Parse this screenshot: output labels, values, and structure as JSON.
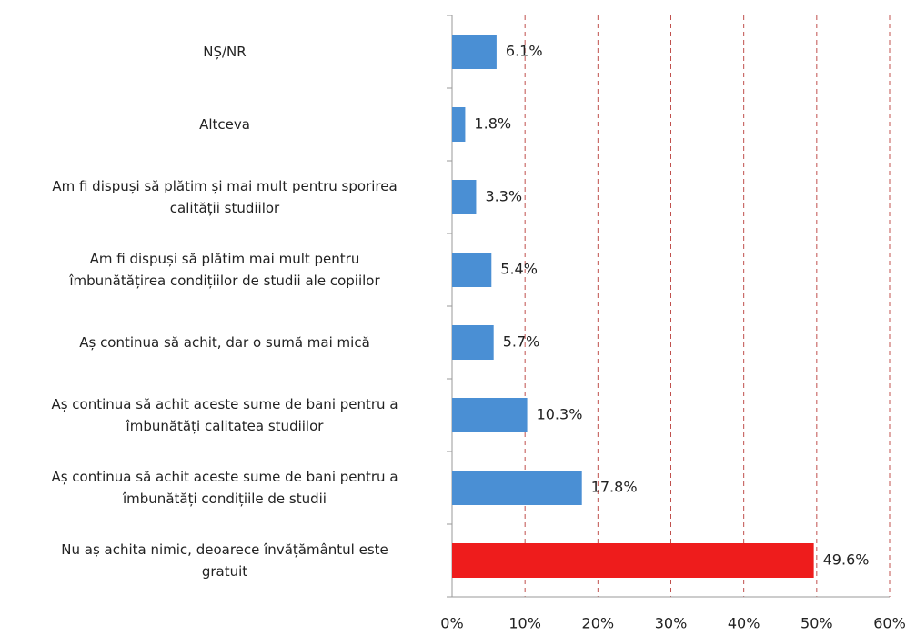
{
  "chart_data": {
    "type": "bar",
    "orientation": "horizontal",
    "categories": [
      "NȘ/NR",
      "Altceva",
      "Am fi dispuși să plătim și mai mult pentru sporirea\ncalității studiilor",
      "Am fi dispuși să plătim mai mult pentru\nîmbunătățirea condițiilor de studii ale copiilor",
      "Aș continua să achit, dar o sumă mai mică",
      "Aș continua să achit aceste sume de bani pentru a\nîmbunătăți calitatea studiilor",
      "Aș continua să achit aceste sume de bani pentru a\nîmbunătăți condițiile de studii",
      "Nu aș achita nimic, deoarece învățământul este\ngratuit"
    ],
    "values": [
      6.1,
      1.8,
      3.3,
      5.4,
      5.7,
      10.3,
      17.8,
      49.6
    ],
    "value_labels": [
      "6.1%",
      "1.8%",
      "3.3%",
      "5.4%",
      "5.7%",
      "10.3%",
      "17.8%",
      "49.6%"
    ],
    "colors": [
      "#4a8fd4",
      "#4a8fd4",
      "#4a8fd4",
      "#4a8fd4",
      "#4a8fd4",
      "#4a8fd4",
      "#4a8fd4",
      "#ee1c1c"
    ],
    "xlim": [
      0,
      60
    ],
    "xticks": [
      {
        "value": 0,
        "label": "0%"
      },
      {
        "value": 10,
        "label": "10%"
      },
      {
        "value": 20,
        "label": "20%"
      },
      {
        "value": 30,
        "label": "30%"
      },
      {
        "value": 40,
        "label": "40%"
      },
      {
        "value": 50,
        "label": "50%"
      },
      {
        "value": 60,
        "label": "60%"
      }
    ],
    "grid": true,
    "grid_color": "#c0504d"
  }
}
